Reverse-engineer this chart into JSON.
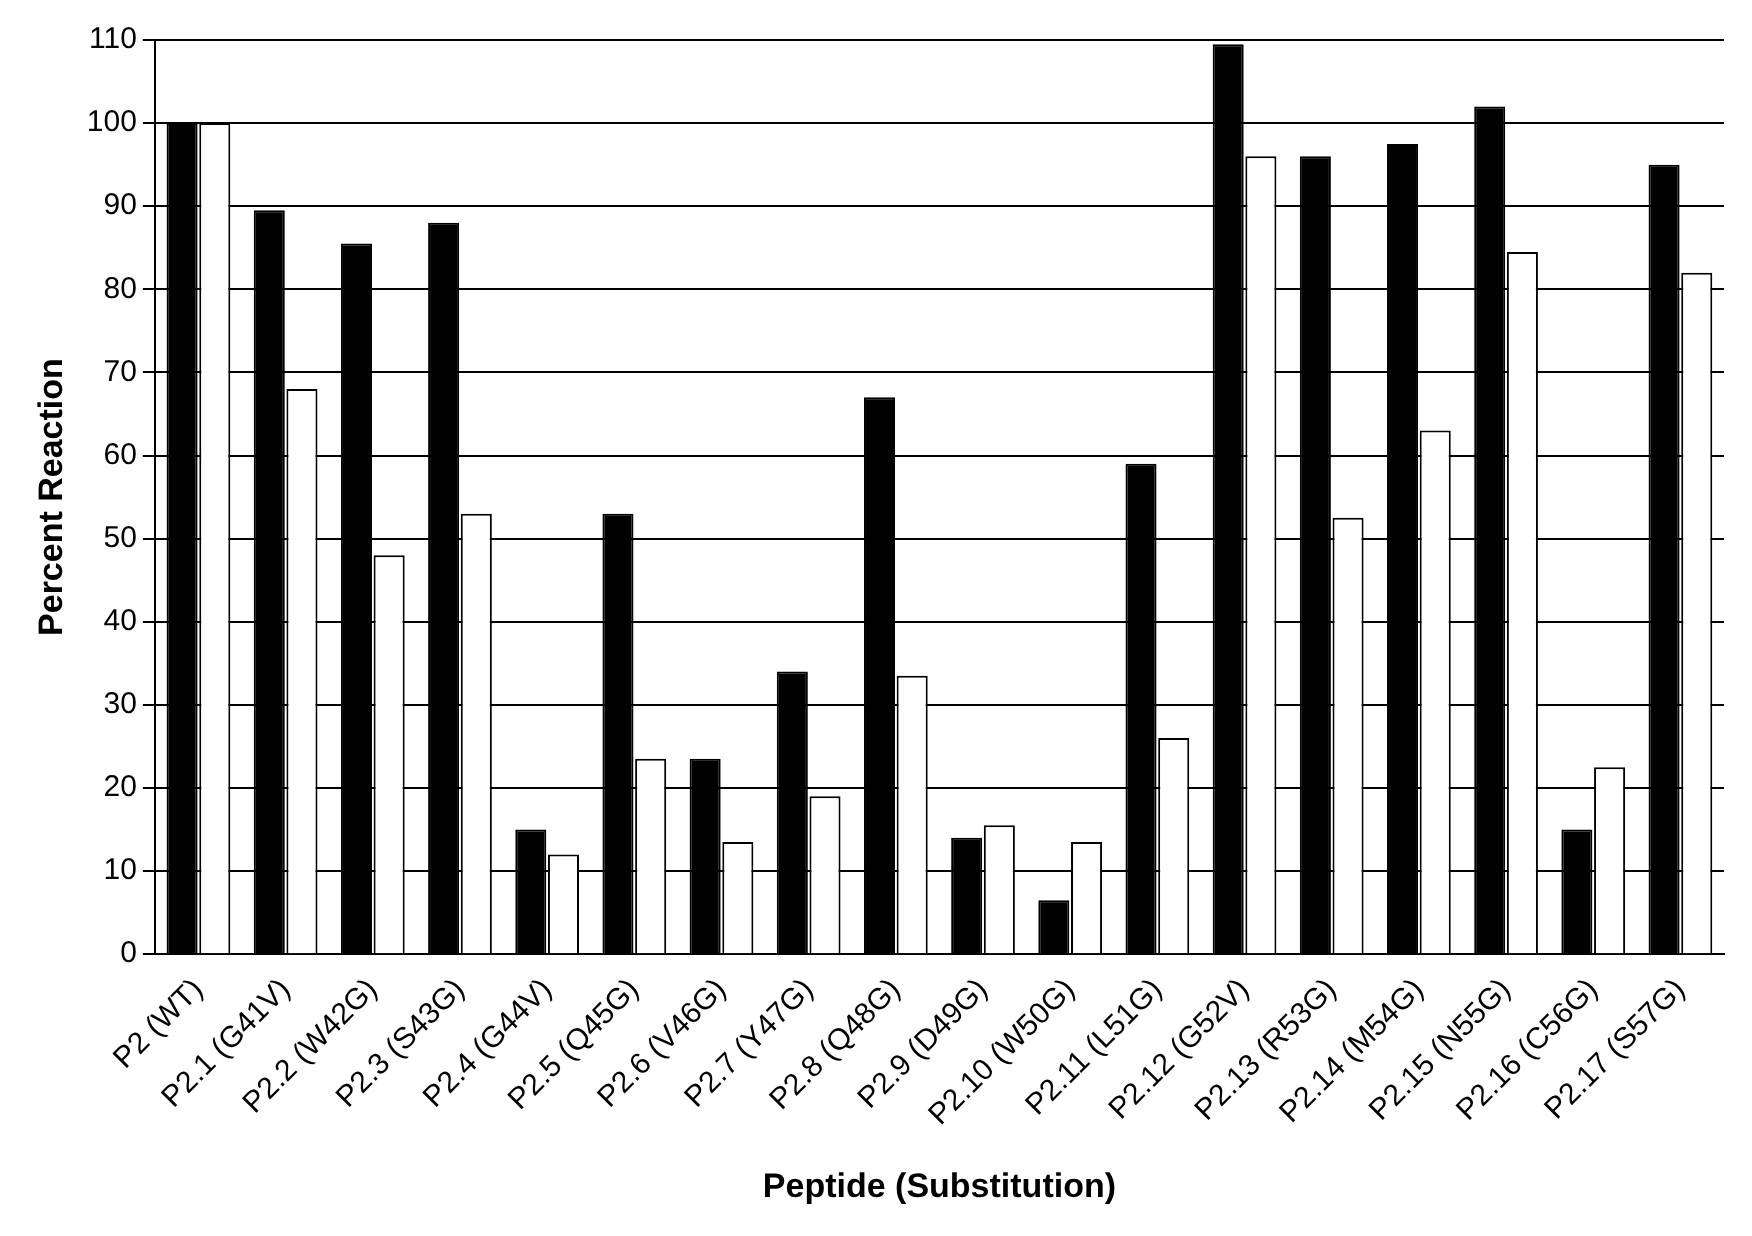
{
  "chart_data": {
    "type": "bar",
    "xlabel": "Peptide (Substitution)",
    "ylabel": "Percent Reaction",
    "categories": [
      "P2 (WT)",
      "P2.1 (G41V)",
      "P2.2 (W42G)",
      "P2.3 (S43G)",
      "P2.4 (G44V)",
      "P2.5 (Q45G)",
      "P2.6 (V46G)",
      "P2.7 (Y47G)",
      "P2.8 (Q48G)",
      "P2.9 (D49G)",
      "P2.10 (W50G)",
      "P2.11 (L51G)",
      "P2.12 (G52V)",
      "P2.13 (R53G)",
      "P2.14 (M54G)",
      "P2.15 (N55G)",
      "P2.16 (C56G)",
      "P2.17 (S57G)"
    ],
    "series": [
      {
        "color": "#000000",
        "values": [
          100,
          89.5,
          85.5,
          88,
          15,
          53,
          23.5,
          34,
          67,
          14,
          6.5,
          59,
          109.5,
          96,
          97.5,
          102,
          15,
          95
        ]
      },
      {
        "color": "#ffffff",
        "values": [
          100,
          68,
          48,
          53,
          12,
          23.5,
          13.5,
          19,
          33.5,
          15.5,
          13.5,
          26,
          96,
          52.5,
          63,
          84.5,
          22.5,
          82
        ]
      }
    ],
    "ylim": [
      0,
      110
    ],
    "yticks": [
      0,
      10,
      20,
      30,
      40,
      50,
      60,
      70,
      80,
      90,
      100,
      110
    ],
    "grid": "y",
    "legend": false
  }
}
